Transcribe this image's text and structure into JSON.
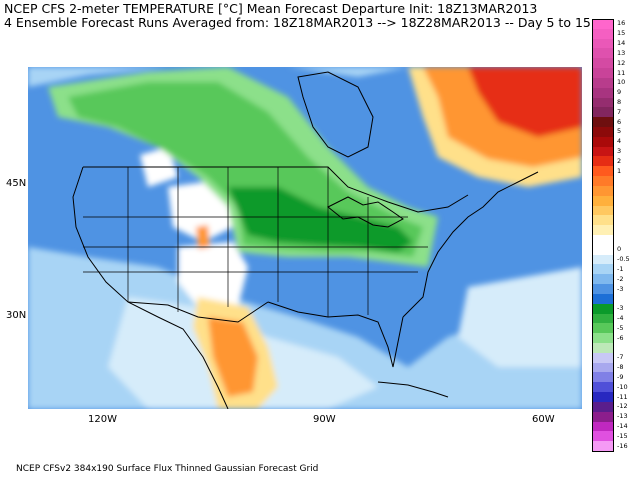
{
  "header": {
    "line1": "NCEP CFS 2-meter TEMPERATURE [°C] Mean Forecast Departure Init: 18Z13MAR2013",
    "line2": "4 Ensemble Forecast Runs Averaged from: 18Z18MAR2013 --> 18Z28MAR2013 -- Day 5 to 15"
  },
  "footer": "NCEP CFSv2 384x190 Surface Flux Thinned Gaussian Forecast Grid",
  "axes": {
    "lat_labels": [
      "45N",
      "30N"
    ],
    "lon_labels": [
      "120W",
      "90W",
      "60W"
    ]
  },
  "colorbar": {
    "levels": [
      {
        "label": "16",
        "color": "#ff66cc"
      },
      {
        "label": "15",
        "color": "#f55fc2"
      },
      {
        "label": "14",
        "color": "#ea58b8"
      },
      {
        "label": "13",
        "color": "#df51ae"
      },
      {
        "label": "12",
        "color": "#d44aa3"
      },
      {
        "label": "11",
        "color": "#c94399"
      },
      {
        "label": "10",
        "color": "#b83c8c"
      },
      {
        "label": "9",
        "color": "#a83480"
      },
      {
        "label": "8",
        "color": "#952d6f"
      },
      {
        "label": "7",
        "color": "#82265e"
      },
      {
        "label": "6",
        "color": "#6e0f0f"
      },
      {
        "label": "5",
        "color": "#8c0a0a"
      },
      {
        "label": "4",
        "color": "#aa0a0a"
      },
      {
        "label": "3",
        "color": "#c81414"
      },
      {
        "label": "2",
        "color": "#e62d14"
      },
      {
        "label": "1",
        "color": "#ff5a1e"
      },
      {
        "label": "",
        "color": "#ff7a28"
      },
      {
        "label": "",
        "color": "#ff9632"
      },
      {
        "label": "",
        "color": "#ffb03c"
      },
      {
        "label": "",
        "color": "#ffc860"
      },
      {
        "label": "",
        "color": "#ffe08a"
      },
      {
        "label": "",
        "color": "#fff0b4"
      },
      {
        "label": "",
        "color": "#ffffff"
      },
      {
        "label": "0",
        "color": "#ffffff"
      },
      {
        "label": "-0.5",
        "color": "#d6ecfa"
      },
      {
        "label": "-1",
        "color": "#a8d4f5"
      },
      {
        "label": "-2",
        "color": "#7fb8ee"
      },
      {
        "label": "-3",
        "color": "#4f93e3"
      },
      {
        "label": "",
        "color": "#1d6fd6"
      },
      {
        "label": "-3",
        "color": "#0a9a2a"
      },
      {
        "label": "-4",
        "color": "#30b040"
      },
      {
        "label": "-5",
        "color": "#58c85a"
      },
      {
        "label": "-6",
        "color": "#8ce08a"
      },
      {
        "label": "",
        "color": "#bde8b8"
      },
      {
        "label": "-7",
        "color": "#c8c8f5"
      },
      {
        "label": "-8",
        "color": "#a8a8ee"
      },
      {
        "label": "-9",
        "color": "#8080e6"
      },
      {
        "label": "-10",
        "color": "#5050d8"
      },
      {
        "label": "-11",
        "color": "#2828c0"
      },
      {
        "label": "-12",
        "color": "#5a1e8c"
      },
      {
        "label": "-13",
        "color": "#8c1e8c"
      },
      {
        "label": "-14",
        "color": "#c028c0"
      },
      {
        "label": "-15",
        "color": "#e050e0"
      },
      {
        "label": "-16",
        "color": "#f59af5"
      }
    ]
  },
  "fields": {
    "ocean_blue": "#4f93e3",
    "light_blue": "#a8d4f5",
    "pale_blue": "#d6ecfa",
    "green_dark": "#0a9a2a",
    "green_mid": "#58c85a",
    "green_light": "#8ce08a",
    "orange": "#ff9632",
    "red": "#e62d14",
    "tan": "#ffe08a",
    "white": "#ffffff"
  }
}
